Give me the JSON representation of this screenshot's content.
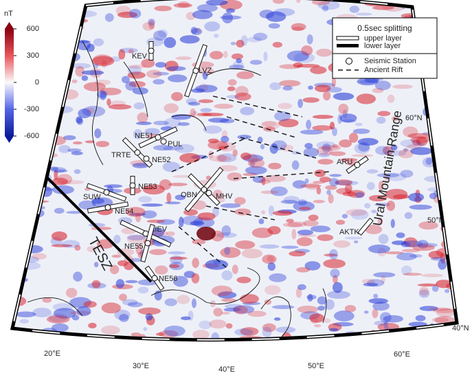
{
  "colorbar": {
    "unit": "nT",
    "ticks": [
      600,
      300,
      0,
      -300,
      -600
    ]
  },
  "legend": {
    "title": "0.5sec splitting",
    "upper": "upper layer",
    "lower": "lower layer",
    "station": "Seismic Station",
    "rift": "Ancient Rift"
  },
  "stations": [
    "KEV",
    "LVZ",
    "NE51",
    "PUL",
    "TRTE",
    "NE52",
    "NE53",
    "SUW",
    "NE54",
    "OBN",
    "MHV",
    "KIEV",
    "NE55",
    "NE56",
    "ARU",
    "AKTK"
  ],
  "annotations": {
    "tesz": "TESZ",
    "ural": "Ural Mountain Range"
  },
  "latitudes": [
    "60°N",
    "50°N",
    "40°N"
  ],
  "longitudes": [
    "20°E",
    "30°E",
    "40°E",
    "50°E",
    "60°E"
  ]
}
